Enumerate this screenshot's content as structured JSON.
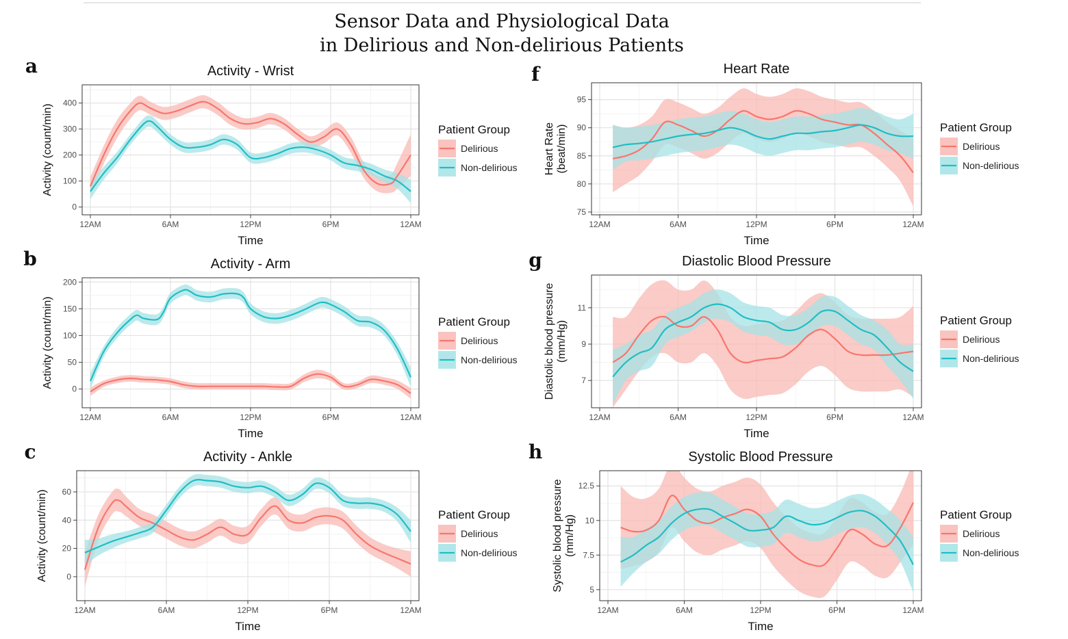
{
  "title_line1": "Sensor Data and Physiological Data",
  "title_line2": "in Delirious and Non-delirious Patients",
  "legend": {
    "title": "Patient Group",
    "items": [
      "Delirious",
      "Non-delirious"
    ]
  },
  "colors": {
    "delirious": "#f8766d",
    "non_delirious": "#1fbec4",
    "delirious_band": "#f8b9b4",
    "non_delirious_band": "#a5e3e6"
  },
  "chart_data": [
    {
      "panel": "a",
      "type": "line",
      "title": "Activity - Wrist",
      "xlabel": "Time",
      "ylabel": "Activity (count/min)",
      "xticks": [
        "12AM",
        "6AM",
        "12PM",
        "6PM",
        "12AM"
      ],
      "xlim": [
        0,
        24
      ],
      "ylim": [
        -30,
        470
      ],
      "yticks": [
        0,
        100,
        200,
        300,
        400
      ],
      "series": [
        {
          "name": "Delirious",
          "x": [
            0,
            1,
            2,
            3,
            3.7,
            4.5,
            5.5,
            6.5,
            7.5,
            8.5,
            9.5,
            10.5,
            11.5,
            12.5,
            13.5,
            14.5,
            15.5,
            16.5,
            17.5,
            18.5,
            19.5,
            20.5,
            21.5,
            22.5,
            23,
            24
          ],
          "y": [
            80,
            200,
            300,
            370,
            400,
            380,
            360,
            370,
            390,
            405,
            380,
            340,
            320,
            325,
            340,
            320,
            280,
            250,
            270,
            300,
            240,
            140,
            90,
            90,
            120,
            200
          ],
          "band": [
            35,
            35,
            35,
            30,
            28,
            25,
            25,
            25,
            25,
            25,
            25,
            25,
            22,
            22,
            22,
            22,
            22,
            22,
            25,
            25,
            30,
            30,
            30,
            35,
            50,
            80
          ]
        },
        {
          "name": "Non-delirious",
          "x": [
            0,
            1,
            2,
            3,
            4,
            4.5,
            5,
            6,
            7,
            8,
            9,
            10,
            11,
            12,
            13,
            14,
            15,
            16,
            17,
            18,
            19,
            20,
            21,
            22,
            23,
            24
          ],
          "y": [
            60,
            130,
            190,
            260,
            320,
            330,
            310,
            260,
            230,
            230,
            240,
            260,
            240,
            190,
            190,
            205,
            225,
            230,
            220,
            200,
            170,
            160,
            145,
            120,
            100,
            60
          ],
          "band": [
            30,
            25,
            22,
            20,
            22,
            22,
            22,
            20,
            20,
            20,
            20,
            20,
            20,
            20,
            20,
            20,
            20,
            20,
            20,
            20,
            22,
            22,
            22,
            25,
            30,
            45
          ]
        }
      ]
    },
    {
      "panel": "b",
      "type": "line",
      "title": "Activity - Arm",
      "xlabel": "Time",
      "ylabel": "Activity (count/min)",
      "xticks": [
        "12AM",
        "6AM",
        "12PM",
        "6PM",
        "12AM"
      ],
      "xlim": [
        0,
        24
      ],
      "ylim": [
        -35,
        208
      ],
      "yticks": [
        0,
        50,
        100,
        150,
        200
      ],
      "series": [
        {
          "name": "Delirious",
          "x": [
            0,
            1,
            2,
            3,
            4,
            5,
            6,
            7,
            8,
            9,
            10,
            11,
            12,
            13,
            14,
            15,
            16,
            17,
            18,
            19,
            20,
            21,
            22,
            23,
            24
          ],
          "y": [
            -5,
            10,
            17,
            20,
            18,
            17,
            14,
            8,
            5,
            5,
            5,
            5,
            5,
            5,
            4,
            5,
            20,
            28,
            22,
            5,
            8,
            18,
            15,
            8,
            -8
          ],
          "band": [
            8,
            6,
            6,
            6,
            6,
            6,
            6,
            6,
            6,
            6,
            6,
            6,
            6,
            6,
            6,
            6,
            7,
            8,
            7,
            6,
            6,
            7,
            7,
            8,
            10
          ]
        },
        {
          "name": "Non-delirious",
          "x": [
            0,
            1,
            2,
            3,
            3.5,
            4,
            5,
            5.5,
            6,
            7,
            7.5,
            8,
            9,
            10,
            11,
            11.5,
            12,
            13,
            14,
            15,
            16,
            17,
            17.5,
            18,
            19,
            20,
            21,
            22,
            23,
            24
          ],
          "y": [
            15,
            70,
            105,
            130,
            138,
            132,
            130,
            145,
            170,
            185,
            182,
            175,
            172,
            178,
            178,
            170,
            150,
            135,
            132,
            138,
            148,
            160,
            162,
            158,
            145,
            128,
            125,
            110,
            75,
            22
          ],
          "band": [
            15,
            10,
            10,
            10,
            10,
            10,
            10,
            10,
            10,
            10,
            10,
            10,
            10,
            10,
            10,
            10,
            10,
            10,
            10,
            10,
            10,
            10,
            10,
            10,
            10,
            10,
            10,
            10,
            12,
            18
          ]
        }
      ]
    },
    {
      "panel": "c",
      "type": "line",
      "title": "Activity - Ankle",
      "xlabel": "Time",
      "ylabel": "Activity (count/min)",
      "xticks": [
        "12AM",
        "6AM",
        "12PM",
        "6PM",
        "12AM"
      ],
      "xlim": [
        0,
        24
      ],
      "ylim": [
        -17,
        75
      ],
      "yticks": [
        0,
        20,
        40,
        60
      ],
      "series": [
        {
          "name": "Delirious",
          "x": [
            0,
            1,
            2,
            2.5,
            3,
            4,
            5,
            6,
            7,
            8,
            9,
            10,
            11,
            12,
            13,
            14,
            15,
            16,
            17,
            18,
            19,
            20,
            21,
            22,
            23,
            24
          ],
          "y": [
            5,
            35,
            52,
            54,
            50,
            42,
            38,
            33,
            28,
            26,
            30,
            35,
            30,
            30,
            42,
            50,
            40,
            38,
            42,
            43,
            40,
            30,
            22,
            17,
            13,
            9
          ],
          "band": [
            12,
            9,
            8,
            8,
            7,
            6,
            6,
            6,
            6,
            6,
            6,
            6,
            6,
            6,
            6,
            6,
            6,
            6,
            6,
            6,
            6,
            6,
            6,
            6,
            7,
            9
          ]
        },
        {
          "name": "Non-delirious",
          "x": [
            0,
            1,
            2,
            3,
            4,
            5,
            6,
            7,
            8,
            9,
            10,
            11,
            12,
            13,
            14,
            15,
            16,
            17,
            18,
            19,
            20,
            21,
            22,
            23,
            24
          ],
          "y": [
            17,
            21,
            25,
            28,
            31,
            35,
            47,
            60,
            68,
            68,
            67,
            64,
            63,
            64,
            60,
            54,
            58,
            66,
            63,
            54,
            52,
            52,
            50,
            44,
            32
          ],
          "band": [
            9,
            6,
            5,
            4,
            4,
            4,
            4,
            4,
            4,
            4,
            4,
            4,
            4,
            4,
            4,
            4,
            4,
            4,
            4,
            4,
            4,
            4,
            4,
            5,
            8
          ]
        }
      ]
    },
    {
      "panel": "f",
      "type": "line",
      "title": "Heart Rate",
      "xlabel": "Time",
      "ylabel_lines": [
        "Heart Rate",
        "(beat/min)"
      ],
      "xticks": [
        "12AM",
        "6AM",
        "12PM",
        "6PM",
        "12AM"
      ],
      "xlim": [
        0,
        24
      ],
      "ylim": [
        74.5,
        98
      ],
      "yticks": [
        75,
        80,
        85,
        90,
        95
      ],
      "series": [
        {
          "name": "Delirious",
          "x": [
            1,
            2,
            3,
            4,
            5,
            6,
            7,
            8,
            9,
            10,
            11,
            12,
            13,
            14,
            15,
            16,
            17,
            18,
            19,
            20,
            21,
            22,
            23,
            24
          ],
          "y": [
            84.5,
            85,
            86,
            88,
            91,
            90.5,
            89.5,
            88.5,
            89.5,
            91.5,
            93,
            92,
            91.5,
            92,
            93,
            92.5,
            91.5,
            91,
            90.5,
            90.5,
            89,
            87,
            85,
            82
          ],
          "band": [
            6,
            5,
            4.5,
            4,
            4,
            4,
            4,
            4,
            4,
            4,
            4,
            4,
            4,
            4,
            4,
            4,
            4,
            4,
            4,
            4,
            4,
            4,
            4.5,
            6
          ]
        },
        {
          "name": "Non-delirious",
          "x": [
            1,
            2,
            3,
            4,
            5,
            6,
            7,
            8,
            9,
            10,
            11,
            12,
            13,
            14,
            15,
            16,
            17,
            18,
            19,
            20,
            21,
            22,
            23,
            24
          ],
          "y": [
            86.5,
            87,
            87.2,
            87.5,
            88,
            88.5,
            88.8,
            89,
            89.5,
            90,
            89.5,
            88.5,
            88,
            88.5,
            89,
            89,
            89.3,
            89.5,
            90,
            90.5,
            90,
            89,
            88.5,
            88.5
          ],
          "band": [
            4,
            3,
            3,
            3,
            3,
            3,
            3,
            3,
            3,
            3,
            3,
            3,
            3,
            3,
            3,
            3,
            3,
            3,
            3,
            3,
            3,
            3,
            3,
            4
          ]
        }
      ]
    },
    {
      "panel": "g",
      "type": "line",
      "title": "Diastolic Blood Pressure",
      "xlabel": "Time",
      "ylabel_lines": [
        "Diastolic blood pressure",
        "(mm/Hg)"
      ],
      "xticks": [
        "12AM",
        "6AM",
        "12PM",
        "6PM",
        "12AM"
      ],
      "xlim": [
        0,
        24
      ],
      "ylim": [
        5.5,
        12.8
      ],
      "yticks": [
        7,
        9,
        11
      ],
      "series": [
        {
          "name": "Delirious",
          "x": [
            1,
            2,
            3,
            4,
            5,
            6,
            7,
            8,
            9,
            10,
            11,
            12,
            13,
            14,
            15,
            16,
            17,
            18,
            19,
            20,
            21,
            22,
            23,
            24
          ],
          "y": [
            8,
            8.5,
            9.5,
            10.3,
            10.5,
            10,
            10,
            10.5,
            9.8,
            8.5,
            8,
            8.1,
            8.2,
            8.3,
            8.8,
            9.5,
            9.8,
            9.3,
            8.6,
            8.4,
            8.4,
            8.4,
            8.5,
            8.6
          ],
          "band": [
            2.5,
            2,
            2,
            2,
            2,
            2,
            2,
            2,
            2,
            2,
            2,
            2,
            2,
            2,
            2,
            2,
            2,
            2,
            2,
            2,
            2,
            2,
            2,
            2.5
          ]
        },
        {
          "name": "Non-delirious",
          "x": [
            1,
            2,
            3,
            4,
            5,
            6,
            7,
            8,
            9,
            10,
            11,
            12,
            13,
            14,
            15,
            16,
            17,
            18,
            19,
            20,
            21,
            22,
            23,
            24
          ],
          "y": [
            7.2,
            8,
            8.5,
            8.8,
            9.8,
            10.2,
            10.5,
            11,
            11.2,
            11,
            10.5,
            10.3,
            10.2,
            9.8,
            9.8,
            10.2,
            10.8,
            10.8,
            10.3,
            9.8,
            9.5,
            8.8,
            8,
            7.5
          ],
          "band": [
            1.5,
            1,
            1,
            1,
            0.8,
            0.8,
            0.8,
            0.8,
            0.8,
            0.8,
            0.8,
            0.8,
            0.8,
            0.8,
            0.8,
            0.8,
            0.8,
            0.8,
            0.8,
            0.8,
            0.8,
            1,
            1,
            1.5
          ]
        }
      ]
    },
    {
      "panel": "h",
      "type": "line",
      "title": "Systolic Blood Pressure",
      "xlabel": "Time",
      "ylabel_lines": [
        "Systolic blood pressure",
        "(mm/Hg)"
      ],
      "xticks": [
        "12AM",
        "6AM",
        "12PM",
        "6PM",
        "12AM"
      ],
      "xlim": [
        0,
        24
      ],
      "ylim": [
        4.2,
        13.6
      ],
      "yticks": [
        5.0,
        7.5,
        10.0,
        12.5
      ],
      "series": [
        {
          "name": "Delirious",
          "x": [
            1,
            2,
            3,
            4,
            5,
            6,
            7,
            8,
            9,
            10,
            11,
            12,
            13,
            14,
            15,
            16,
            17,
            18,
            19,
            20,
            21,
            22,
            23,
            24
          ],
          "y": [
            9.5,
            9.2,
            9.3,
            10,
            11.8,
            10.8,
            10,
            9.8,
            10.2,
            10.5,
            10.8,
            10.3,
            9,
            8,
            7.2,
            6.8,
            6.8,
            8,
            9.3,
            9,
            8.3,
            8.2,
            9.5,
            11.3
          ],
          "band": [
            3,
            2.5,
            2.3,
            2.3,
            2.3,
            2.3,
            2.3,
            2.3,
            2.3,
            2.3,
            2.3,
            2.3,
            2.3,
            2.3,
            2.3,
            2.3,
            2.3,
            2.3,
            2.3,
            2.3,
            2.3,
            2.3,
            2.5,
            3
          ]
        },
        {
          "name": "Non-delirious",
          "x": [
            1,
            2,
            3,
            4,
            5,
            6,
            7,
            8,
            9,
            10,
            11,
            12,
            13,
            14,
            15,
            16,
            17,
            18,
            19,
            20,
            21,
            22,
            23,
            24
          ],
          "y": [
            7,
            7.5,
            8.2,
            8.8,
            9.8,
            10.5,
            10.8,
            10.8,
            10.3,
            9.8,
            9.3,
            9.3,
            9.5,
            10.3,
            10,
            9.7,
            9.8,
            10.2,
            10.6,
            10.7,
            10.3,
            9.5,
            8.5,
            6.8
          ],
          "band": [
            1.8,
            1.3,
            1.2,
            1.2,
            1.2,
            1.2,
            1.2,
            1.2,
            1.2,
            1.2,
            1.2,
            1.2,
            1.2,
            1.2,
            1.2,
            1.2,
            1.2,
            1.2,
            1.2,
            1.2,
            1.2,
            1.3,
            1.5,
            2
          ]
        }
      ]
    }
  ]
}
